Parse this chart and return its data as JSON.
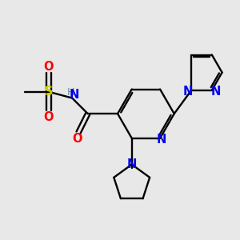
{
  "bg_color": "#e8e8e8",
  "bond_color": "#000000",
  "atom_colors": {
    "N": "#0000ee",
    "O": "#ff0000",
    "S": "#cccc00",
    "C": "#000000",
    "H": "#5f9090"
  },
  "figsize": [
    3.0,
    3.0
  ],
  "dpi": 100
}
